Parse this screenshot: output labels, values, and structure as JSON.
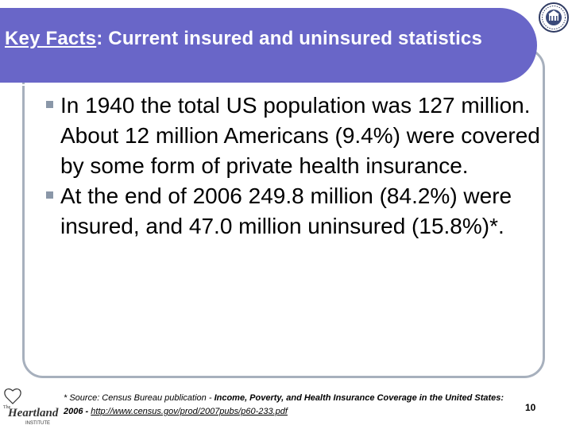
{
  "title": {
    "lead": "Key Facts",
    "colon": ":",
    "rest": "Current insured and uninsured statistics"
  },
  "bullets": [
    "In 1940 the total US population was 127 million. About 12 million Americans (9.4%) were covered by some form of private health insurance.",
    "At the end of 2006 249.8 million (84.2%) were insured, and 47.0 million uninsured (15.8%)*."
  ],
  "footnote": {
    "prefix": "* Source: Census Bureau publication - ",
    "publication": "Income, Poverty, and Health Insurance Coverage in the United States: 2006",
    "separator": " - ",
    "link": "http://www.census.gov/prod/2007pubs/p60-233.pdf"
  },
  "page_number": "10",
  "logo": {
    "small_text_top": "The",
    "name": "Heartland",
    "small_text_bottom": "INSTITUTE"
  },
  "colors": {
    "title_bar": "#6966c8",
    "frame": "#a7b0bd",
    "bullet_marker": "#8a97a8"
  },
  "icons": {
    "seal": "institute-seal-icon",
    "bullet": "square-bullet-icon",
    "logo": "heartland-logo-icon"
  }
}
